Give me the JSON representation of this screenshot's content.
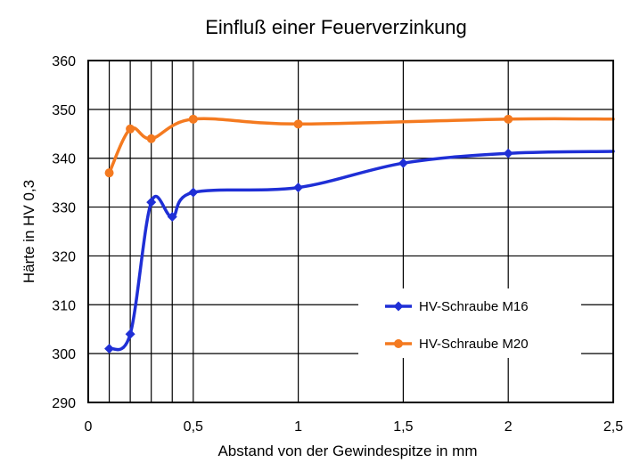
{
  "chart_data": {
    "type": "line",
    "title": "Einfluß einer Feuerverzinkung",
    "xlabel": "Abstand  von der Gewindespitze  in mm",
    "ylabel": "Härte in HV 0,3",
    "xlim": [
      0,
      2.5
    ],
    "ylim": [
      290,
      360
    ],
    "x_ticks": [
      "0",
      "0,5",
      "1",
      "1,5",
      "2",
      "2,5"
    ],
    "x_tick_values": [
      0,
      0.5,
      1,
      1.5,
      2,
      2.5
    ],
    "y_ticks": [
      "290",
      "300",
      "310",
      "320",
      "330",
      "340",
      "350",
      "360"
    ],
    "y_tick_values": [
      290,
      300,
      310,
      320,
      330,
      340,
      350,
      360
    ],
    "x_gridlines": [
      0.1,
      0.2,
      0.3,
      0.4,
      0.5,
      1,
      1.5,
      2,
      2.5
    ],
    "grid": true,
    "legend_position": "bottom-right",
    "series": [
      {
        "name": "HV-Schraube M16",
        "color": "#1F2FD6",
        "marker": "diamond",
        "x": [
          0.1,
          0.2,
          0.3,
          0.4,
          0.5,
          1,
          1.5,
          2
        ],
        "y": [
          301,
          304,
          331,
          328,
          333,
          334,
          339,
          341
        ],
        "line_end": [
          2.5,
          341.4
        ]
      },
      {
        "name": "HV-Schraube M20",
        "color": "#F47A20",
        "marker": "circle",
        "x": [
          0.1,
          0.2,
          0.3,
          0.5,
          1,
          2
        ],
        "y": [
          337,
          346,
          344,
          348,
          347,
          348
        ],
        "line_end": [
          2.5,
          348
        ]
      }
    ]
  }
}
